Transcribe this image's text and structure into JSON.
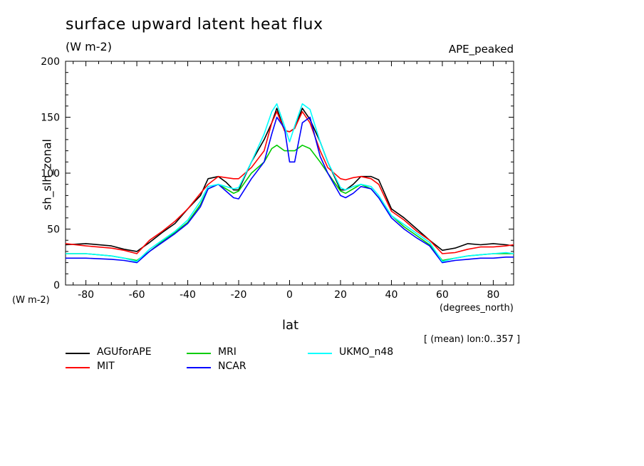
{
  "header": {
    "title": "surface upward latent heat flux",
    "units": "(W m-2)",
    "experiment": "APE_peaked"
  },
  "footer_note": "[ (mean) lon:0..357 ]",
  "chart_data": {
    "type": "line",
    "title": "surface upward latent heat flux",
    "subtitle": "(W m-2)",
    "xlabel": "lat",
    "xunit": "(degrees_north)",
    "ylabel": "sh_slh_zonal",
    "yunit": "(W m-2)",
    "xlim": [
      -88,
      88
    ],
    "ylim": [
      0,
      200
    ],
    "xticks": [
      -80,
      -60,
      -40,
      -20,
      0,
      20,
      40,
      60,
      80
    ],
    "yticks": [
      0,
      50,
      100,
      150,
      200
    ],
    "legend_position": "bottom",
    "grid": false,
    "series": [
      {
        "name": "AGUforAPE",
        "color": "#000000",
        "points": [
          [
            -88,
            36
          ],
          [
            -80,
            37
          ],
          [
            -70,
            35
          ],
          [
            -65,
            32
          ],
          [
            -60,
            30
          ],
          [
            -55,
            38
          ],
          [
            -50,
            47
          ],
          [
            -45,
            55
          ],
          [
            -40,
            68
          ],
          [
            -35,
            80
          ],
          [
            -32,
            95
          ],
          [
            -28,
            97
          ],
          [
            -25,
            92
          ],
          [
            -22,
            85
          ],
          [
            -20,
            85
          ],
          [
            -15,
            110
          ],
          [
            -10,
            130
          ],
          [
            -7,
            145
          ],
          [
            -5,
            158
          ],
          [
            -2,
            138
          ],
          [
            0,
            137
          ],
          [
            2,
            140
          ],
          [
            5,
            158
          ],
          [
            8,
            148
          ],
          [
            12,
            128
          ],
          [
            15,
            110
          ],
          [
            20,
            85
          ],
          [
            22,
            85
          ],
          [
            25,
            90
          ],
          [
            28,
            97
          ],
          [
            32,
            97
          ],
          [
            35,
            94
          ],
          [
            40,
            68
          ],
          [
            45,
            60
          ],
          [
            50,
            50
          ],
          [
            55,
            40
          ],
          [
            60,
            31
          ],
          [
            65,
            33
          ],
          [
            70,
            37
          ],
          [
            75,
            36
          ],
          [
            80,
            37
          ],
          [
            85,
            36
          ],
          [
            88,
            35
          ]
        ]
      },
      {
        "name": "MIT",
        "color": "#ff0000",
        "points": [
          [
            -88,
            37
          ],
          [
            -80,
            35
          ],
          [
            -70,
            33
          ],
          [
            -65,
            31
          ],
          [
            -60,
            28
          ],
          [
            -55,
            40
          ],
          [
            -50,
            48
          ],
          [
            -45,
            57
          ],
          [
            -40,
            68
          ],
          [
            -35,
            82
          ],
          [
            -32,
            90
          ],
          [
            -28,
            97
          ],
          [
            -25,
            96
          ],
          [
            -22,
            95
          ],
          [
            -20,
            95
          ],
          [
            -15,
            105
          ],
          [
            -10,
            120
          ],
          [
            -7,
            145
          ],
          [
            -5,
            155
          ],
          [
            -2,
            138
          ],
          [
            0,
            137
          ],
          [
            2,
            140
          ],
          [
            5,
            155
          ],
          [
            8,
            145
          ],
          [
            12,
            120
          ],
          [
            15,
            105
          ],
          [
            20,
            95
          ],
          [
            22,
            94
          ],
          [
            25,
            96
          ],
          [
            28,
            97
          ],
          [
            32,
            95
          ],
          [
            35,
            90
          ],
          [
            40,
            66
          ],
          [
            45,
            58
          ],
          [
            50,
            48
          ],
          [
            55,
            40
          ],
          [
            60,
            28
          ],
          [
            65,
            29
          ],
          [
            70,
            32
          ],
          [
            75,
            34
          ],
          [
            80,
            34
          ],
          [
            85,
            35
          ],
          [
            88,
            36
          ]
        ]
      },
      {
        "name": "MRI",
        "color": "#00cc00",
        "points": [
          [
            -88,
            28
          ],
          [
            -80,
            28
          ],
          [
            -70,
            26
          ],
          [
            -65,
            24
          ],
          [
            -60,
            22
          ],
          [
            -55,
            30
          ],
          [
            -50,
            39
          ],
          [
            -45,
            47
          ],
          [
            -40,
            56
          ],
          [
            -35,
            72
          ],
          [
            -32,
            86
          ],
          [
            -28,
            90
          ],
          [
            -25,
            86
          ],
          [
            -22,
            82
          ],
          [
            -20,
            84
          ],
          [
            -15,
            100
          ],
          [
            -10,
            110
          ],
          [
            -7,
            122
          ],
          [
            -5,
            125
          ],
          [
            -2,
            120
          ],
          [
            0,
            120
          ],
          [
            2,
            120
          ],
          [
            5,
            125
          ],
          [
            8,
            122
          ],
          [
            12,
            110
          ],
          [
            15,
            100
          ],
          [
            20,
            84
          ],
          [
            22,
            82
          ],
          [
            25,
            86
          ],
          [
            28,
            90
          ],
          [
            32,
            86
          ],
          [
            35,
            78
          ],
          [
            40,
            62
          ],
          [
            45,
            52
          ],
          [
            50,
            44
          ],
          [
            55,
            36
          ],
          [
            60,
            22
          ],
          [
            65,
            24
          ],
          [
            70,
            26
          ],
          [
            75,
            27
          ],
          [
            80,
            28
          ],
          [
            85,
            28
          ],
          [
            88,
            28
          ]
        ]
      },
      {
        "name": "NCAR",
        "color": "#0000ff",
        "points": [
          [
            -88,
            24
          ],
          [
            -80,
            24
          ],
          [
            -70,
            23
          ],
          [
            -65,
            22
          ],
          [
            -60,
            20
          ],
          [
            -55,
            30
          ],
          [
            -50,
            38
          ],
          [
            -45,
            46
          ],
          [
            -40,
            55
          ],
          [
            -35,
            70
          ],
          [
            -32,
            86
          ],
          [
            -28,
            90
          ],
          [
            -25,
            84
          ],
          [
            -22,
            78
          ],
          [
            -20,
            77
          ],
          [
            -15,
            95
          ],
          [
            -10,
            110
          ],
          [
            -7,
            135
          ],
          [
            -5,
            150
          ],
          [
            -2,
            140
          ],
          [
            0,
            110
          ],
          [
            2,
            110
          ],
          [
            5,
            145
          ],
          [
            8,
            150
          ],
          [
            12,
            115
          ],
          [
            15,
            100
          ],
          [
            20,
            80
          ],
          [
            22,
            78
          ],
          [
            25,
            82
          ],
          [
            28,
            88
          ],
          [
            32,
            86
          ],
          [
            35,
            78
          ],
          [
            40,
            60
          ],
          [
            45,
            50
          ],
          [
            50,
            42
          ],
          [
            55,
            35
          ],
          [
            60,
            20
          ],
          [
            65,
            22
          ],
          [
            70,
            23
          ],
          [
            75,
            24
          ],
          [
            80,
            24
          ],
          [
            85,
            25
          ],
          [
            88,
            25
          ]
        ]
      },
      {
        "name": "UKMO_n48",
        "color": "#00ffff",
        "points": [
          [
            -88,
            28
          ],
          [
            -80,
            28
          ],
          [
            -70,
            26
          ],
          [
            -65,
            24
          ],
          [
            -60,
            21
          ],
          [
            -55,
            32
          ],
          [
            -50,
            40
          ],
          [
            -45,
            48
          ],
          [
            -40,
            58
          ],
          [
            -35,
            75
          ],
          [
            -32,
            88
          ],
          [
            -28,
            90
          ],
          [
            -25,
            88
          ],
          [
            -22,
            86
          ],
          [
            -20,
            87
          ],
          [
            -15,
            110
          ],
          [
            -10,
            135
          ],
          [
            -7,
            155
          ],
          [
            -5,
            162
          ],
          [
            -2,
            142
          ],
          [
            0,
            128
          ],
          [
            2,
            142
          ],
          [
            5,
            162
          ],
          [
            8,
            157
          ],
          [
            12,
            128
          ],
          [
            15,
            110
          ],
          [
            20,
            87
          ],
          [
            22,
            85
          ],
          [
            25,
            88
          ],
          [
            28,
            90
          ],
          [
            32,
            88
          ],
          [
            35,
            80
          ],
          [
            40,
            62
          ],
          [
            45,
            54
          ],
          [
            50,
            46
          ],
          [
            55,
            38
          ],
          [
            60,
            21
          ],
          [
            65,
            24
          ],
          [
            70,
            26
          ],
          [
            75,
            27
          ],
          [
            80,
            28
          ],
          [
            85,
            29
          ],
          [
            88,
            28
          ]
        ]
      }
    ]
  }
}
